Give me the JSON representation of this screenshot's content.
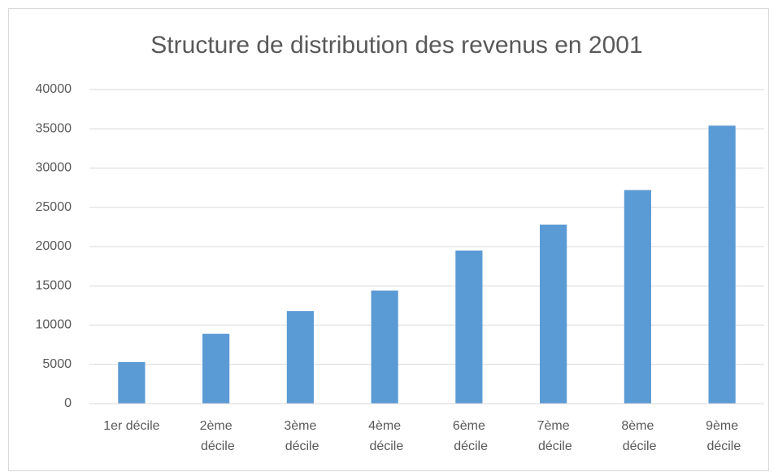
{
  "chart_data": {
    "type": "bar",
    "title": "Structure de distribution des revenus en 2001",
    "categories": [
      "1er décile",
      "2ème décile",
      "3ème décile",
      "4ème décile",
      "6ème décile",
      "7ème décile",
      "8ème décile",
      "9ème décile"
    ],
    "values": [
      5300,
      8900,
      11800,
      14400,
      19500,
      22800,
      27200,
      35400
    ],
    "color": "#5b9bd5",
    "ylim": [
      0,
      40000
    ],
    "yticks": [
      0,
      5000,
      10000,
      15000,
      20000,
      25000,
      30000,
      35000,
      40000
    ],
    "grid": true
  }
}
